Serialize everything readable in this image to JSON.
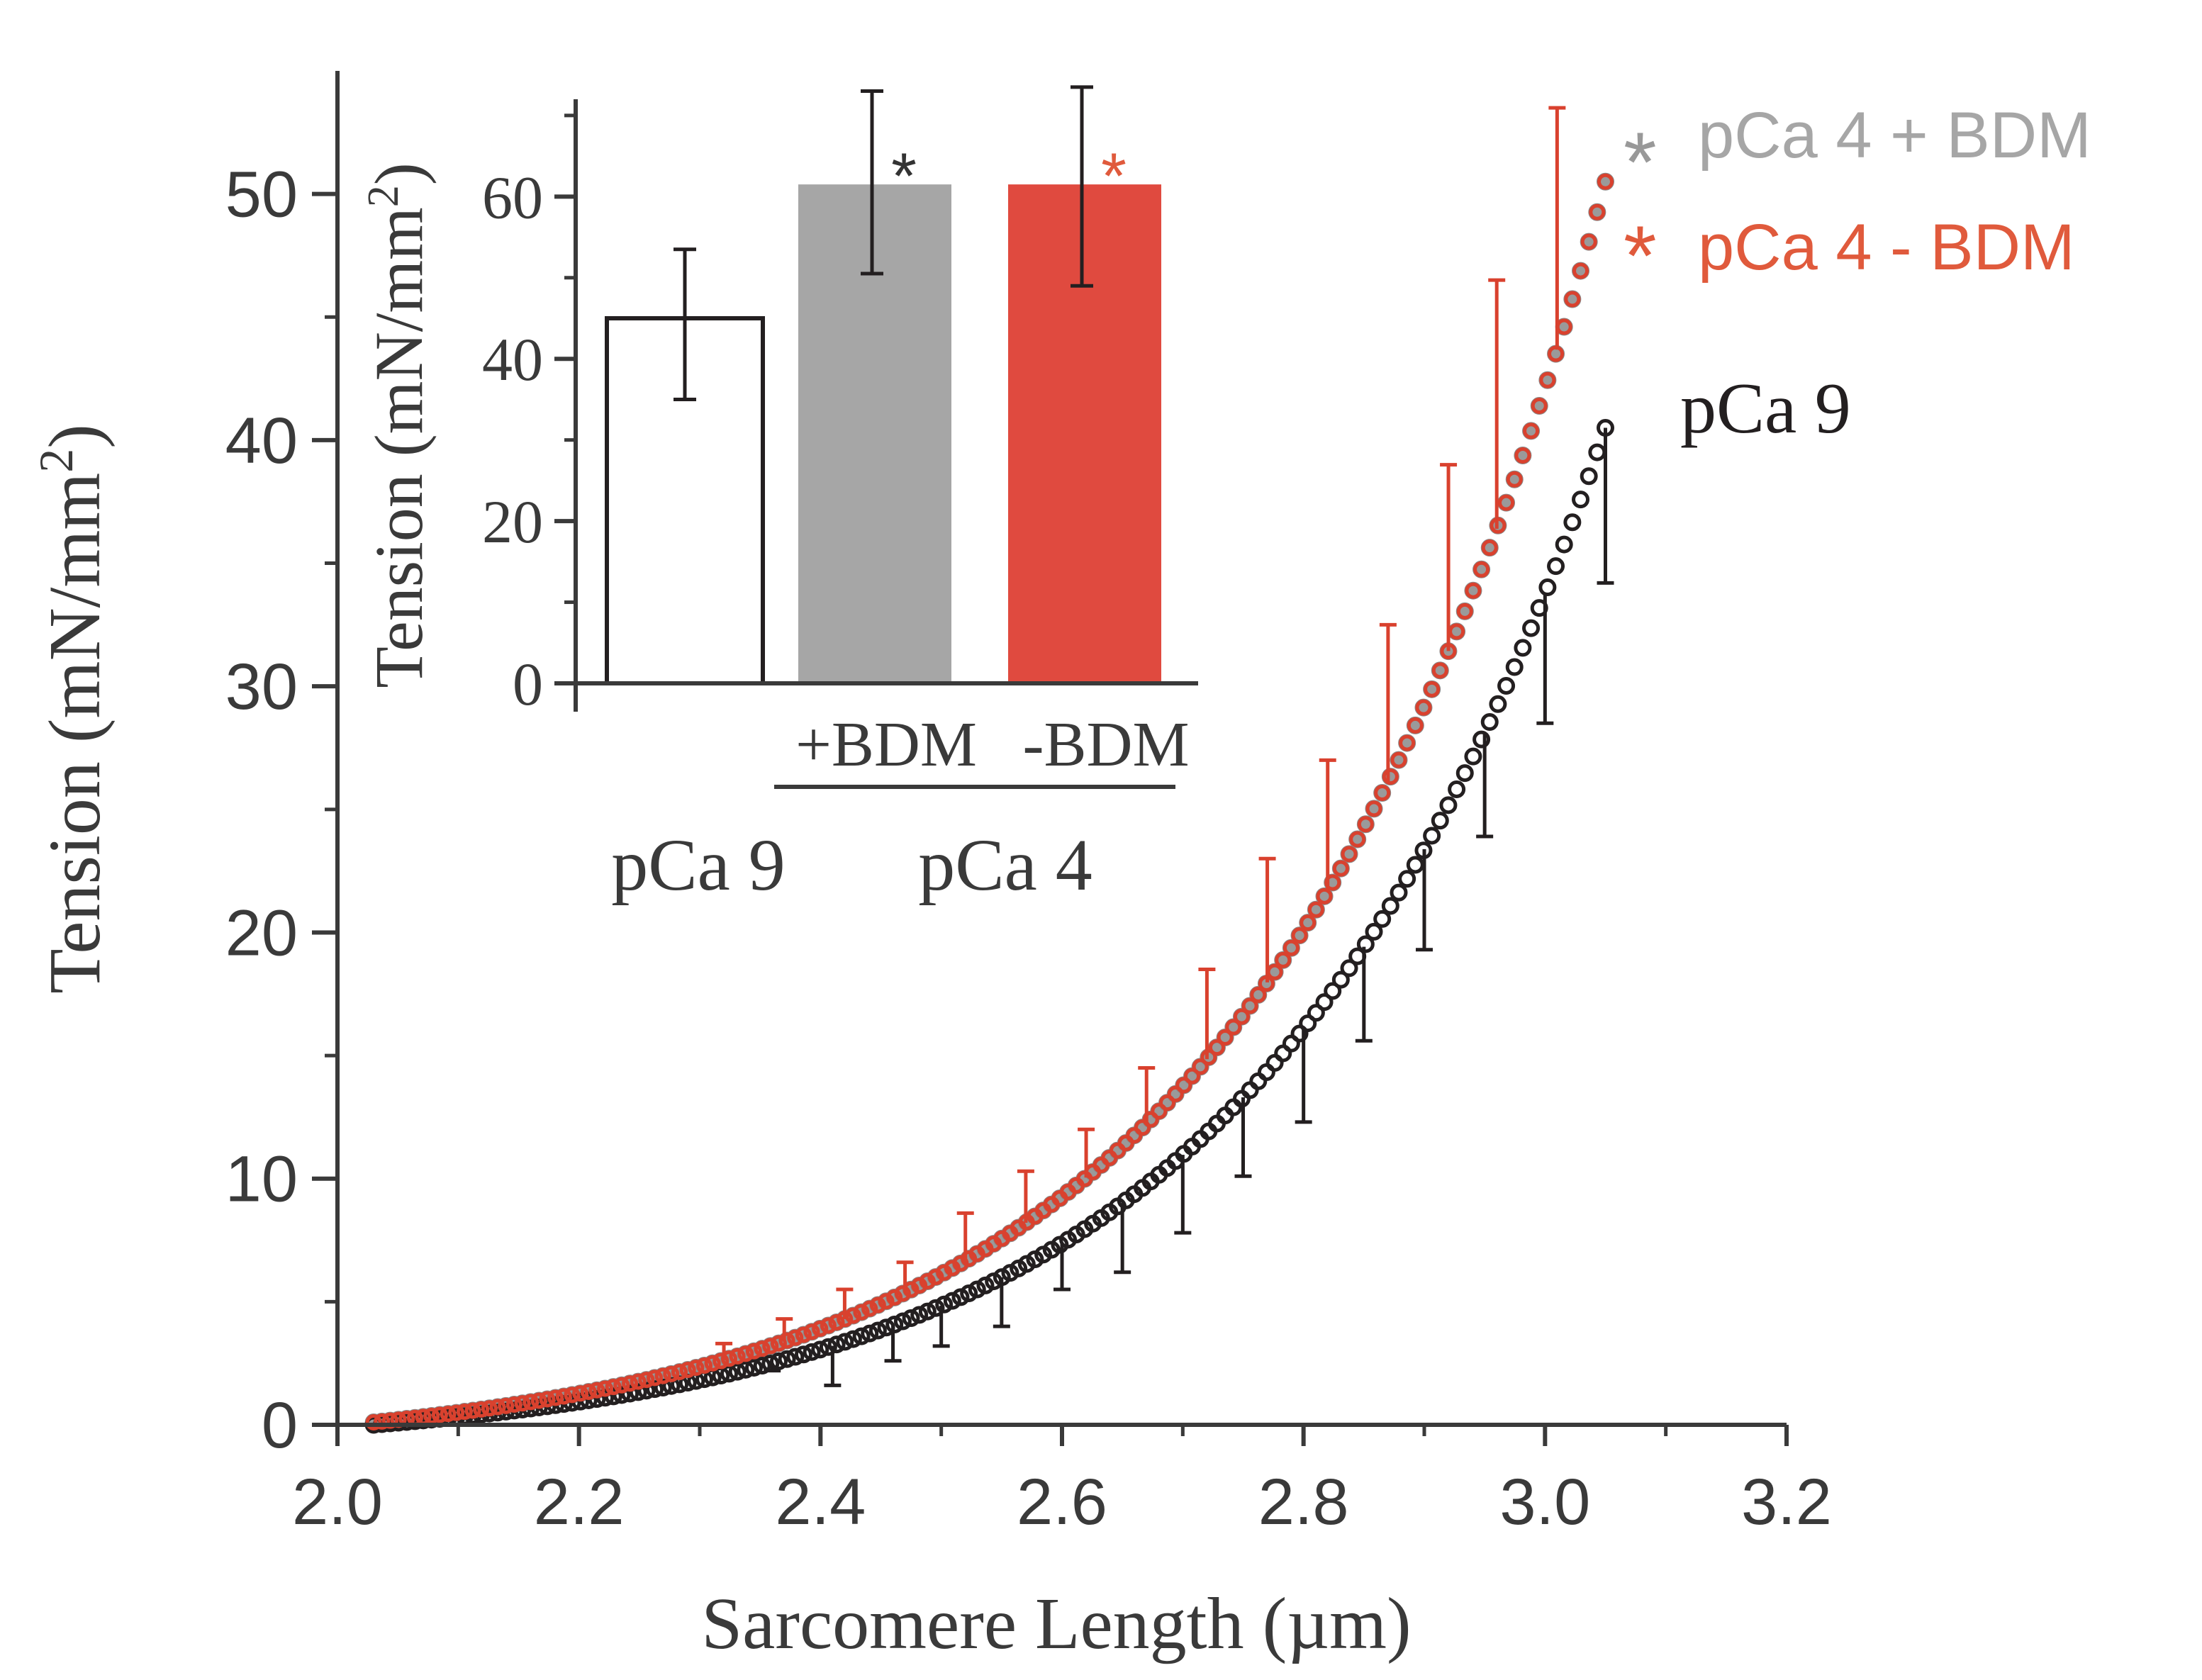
{
  "chart_data": [
    {
      "type": "scatter",
      "xlabel": "Sarcomere Length (µm)",
      "ylabel": "Tension (mN/mm",
      "ylabel_sup": "2",
      "ylabel_close": ")",
      "xlim": [
        2.0,
        3.2
      ],
      "ylim": [
        0,
        55
      ],
      "x_ticks": [
        2.0,
        2.2,
        2.4,
        2.6,
        2.8,
        3.0,
        3.2
      ],
      "x_tick_labels": [
        "2.0",
        "2.2",
        "2.4",
        "2.6",
        "2.8",
        "3.0",
        "3.2"
      ],
      "y_ticks": [
        0,
        10,
        20,
        30,
        40,
        50
      ],
      "y_tick_labels": [
        "0",
        "10",
        "20",
        "30",
        "40",
        "50"
      ],
      "series": [
        {
          "name": "pCa 4 + BDM",
          "marker": "*",
          "color": "#999999",
          "x_start": 2.03,
          "x_end": 3.05,
          "y_start": 0.1,
          "y_end": 50.5,
          "error": []
        },
        {
          "name": "pCa 4 - BDM",
          "marker": "*",
          "color": "#e05a3c",
          "x_start": 2.03,
          "x_end": 3.05,
          "y_start": 0.1,
          "y_end": 50.5,
          "error": [
            [
              2.32,
              3.3
            ],
            [
              2.37,
              4.3
            ],
            [
              2.42,
              5.5
            ],
            [
              2.47,
              6.6
            ],
            [
              2.52,
              8.6
            ],
            [
              2.57,
              10.3
            ],
            [
              2.62,
              12.0
            ],
            [
              2.67,
              14.5
            ],
            [
              2.72,
              18.5
            ],
            [
              2.77,
              23.0
            ],
            [
              2.82,
              27.0
            ],
            [
              2.87,
              32.5
            ],
            [
              2.92,
              39.0
            ],
            [
              2.96,
              46.5
            ],
            [
              3.01,
              53.5
            ]
          ]
        },
        {
          "name": "pCa 9",
          "marker": "",
          "color": "#231f20",
          "x_start": 2.03,
          "x_end": 3.05,
          "y_start": 0.0,
          "y_end": 40.5,
          "error": [
            [
              2.36,
              2.2
            ],
            [
              2.41,
              1.6
            ],
            [
              2.46,
              2.6
            ],
            [
              2.5,
              3.2
            ],
            [
              2.55,
              4.0
            ],
            [
              2.6,
              5.5
            ],
            [
              2.65,
              6.2
            ],
            [
              2.7,
              7.8
            ],
            [
              2.75,
              10.1
            ],
            [
              2.8,
              12.3
            ],
            [
              2.85,
              15.6
            ],
            [
              2.9,
              19.3
            ],
            [
              2.95,
              23.9
            ],
            [
              3.0,
              28.5
            ],
            [
              3.05,
              34.2
            ]
          ]
        }
      ]
    },
    {
      "type": "bar",
      "ylabel": "Tension (mN/mm",
      "ylabel_sup": "2",
      "ylabel_close": ")",
      "ylim": [
        0,
        72
      ],
      "y_ticks": [
        0,
        20,
        40,
        60
      ],
      "y_tick_labels": [
        "0",
        "20",
        "40",
        "60"
      ],
      "bars": [
        {
          "label": "",
          "value": 45,
          "error_low": 35,
          "error_high": 53.5,
          "color": "#ffffff",
          "marker": "",
          "marker_color": ""
        },
        {
          "label": "+BDM",
          "value": 61.5,
          "error_low": 50.5,
          "error_high": 73,
          "color": "#a6a6a6",
          "marker": "*",
          "marker_color": "#333333"
        },
        {
          "label": "-BDM",
          "value": 61.5,
          "error_low": 49,
          "error_high": 73.5,
          "color": "#e04a3f",
          "marker": "*",
          "marker_color": "#e05a3c"
        }
      ],
      "groups": [
        {
          "label": "pCa 9"
        },
        {
          "label": "pCa 4"
        }
      ]
    }
  ]
}
